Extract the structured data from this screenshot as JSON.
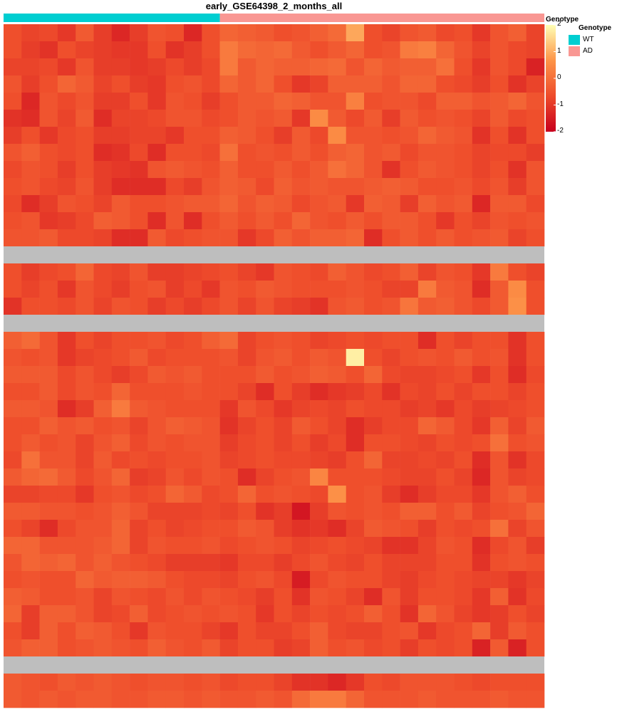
{
  "chart_data": {
    "type": "heatmap",
    "title": "early_GSE64398_2_months_all",
    "annotation": {
      "title": "Genotype",
      "groups": [
        {
          "name": "WT",
          "columns": 12,
          "color": "#00CED1"
        },
        {
          "name": "AD",
          "columns": 18,
          "color": "#F99793"
        }
      ]
    },
    "color_scale": {
      "title": "Genotype",
      "min": -2,
      "max": 2,
      "ticks": [
        2,
        1,
        0,
        -1,
        -2
      ],
      "colors": [
        "#C8001E",
        "#EE4B2B",
        "#FD9448",
        "#FFFFB4"
      ]
    },
    "legend": {
      "title": "Genotype",
      "position": "right",
      "items": [
        "WT",
        "AD"
      ]
    },
    "n_columns": 30,
    "missing_color": "#BEBEBE",
    "rows": [
      [
        -0.6,
        -0.8,
        -0.7,
        -1.0,
        -0.4,
        -0.9,
        -1.3,
        -0.9,
        -0.5,
        -0.6,
        -1.3,
        -0.6,
        -0.2,
        -0.3,
        -0.4,
        -0.6,
        -0.5,
        -0.3,
        -0.1,
        0.9,
        -0.6,
        -0.8,
        -0.5,
        -0.4,
        -0.7,
        -0.6,
        -1.0,
        -0.5,
        -0.3,
        -0.8
      ],
      [
        -0.6,
        -0.9,
        -1.1,
        -0.6,
        -0.8,
        -0.9,
        -1.0,
        -1.0,
        -0.6,
        -1.1,
        -0.9,
        -0.6,
        0.2,
        -0.1,
        -0.2,
        -0.1,
        -0.4,
        -0.6,
        -0.4,
        -0.2,
        -0.6,
        -0.5,
        0.2,
        0.3,
        -0.2,
        -0.5,
        -0.8,
        -0.5,
        -0.7,
        -0.8
      ],
      [
        -0.8,
        -0.8,
        -0.7,
        -1.0,
        -0.5,
        -0.9,
        -0.9,
        -1.0,
        -0.9,
        -0.7,
        -0.9,
        -0.7,
        0.2,
        -0.4,
        -0.2,
        -0.3,
        -0.3,
        -0.2,
        -0.1,
        -0.5,
        -0.2,
        -0.4,
        -0.3,
        -0.3,
        0.0,
        -0.6,
        -1.0,
        -0.5,
        -0.7,
        -1.4
      ],
      [
        -0.5,
        -0.9,
        -0.6,
        -0.2,
        -0.4,
        -0.8,
        -0.6,
        -0.9,
        -1.0,
        -0.6,
        -0.5,
        -0.7,
        -0.2,
        -0.4,
        -0.2,
        -0.6,
        -1.0,
        -0.8,
        -0.3,
        -0.3,
        -0.3,
        -0.5,
        -0.2,
        -0.2,
        -0.6,
        -0.7,
        -0.9,
        -0.6,
        -1.1,
        -0.8
      ],
      [
        -0.6,
        -1.3,
        -0.5,
        -0.7,
        -0.5,
        -0.9,
        -0.9,
        -0.6,
        -1.0,
        -0.5,
        -0.6,
        -0.9,
        -0.6,
        -0.4,
        -0.4,
        -0.2,
        -0.3,
        -0.5,
        -0.5,
        0.3,
        -0.6,
        -0.5,
        -0.5,
        -0.7,
        -0.3,
        -0.3,
        -0.5,
        -0.4,
        -0.2,
        -0.5
      ],
      [
        -1.1,
        -1.2,
        -0.5,
        -0.8,
        -0.4,
        -1.2,
        -0.8,
        -0.8,
        -0.7,
        -0.5,
        -0.5,
        -0.7,
        -0.6,
        -0.4,
        -0.5,
        -0.4,
        -1.0,
        0.5,
        -0.4,
        -0.7,
        -0.4,
        -0.9,
        -0.4,
        -0.6,
        -0.5,
        -0.6,
        -0.8,
        -0.4,
        -0.7,
        -0.6
      ],
      [
        -0.9,
        -0.6,
        -1.0,
        -0.7,
        -0.6,
        -0.9,
        -0.9,
        -0.8,
        -0.8,
        -1.0,
        -0.6,
        -0.6,
        -0.3,
        -0.4,
        -0.6,
        -0.9,
        -0.4,
        -0.7,
        0.5,
        -0.5,
        -0.5,
        -0.6,
        -0.5,
        -0.2,
        -0.4,
        -0.5,
        -1.1,
        -0.6,
        -1.1,
        -0.6
      ],
      [
        -0.5,
        -0.3,
        -0.6,
        -0.7,
        -0.6,
        -1.2,
        -1.1,
        -0.7,
        -1.2,
        -0.6,
        -0.6,
        -0.7,
        0.0,
        -0.6,
        -0.5,
        -0.6,
        -0.4,
        -0.6,
        -0.3,
        -0.2,
        -0.5,
        -0.4,
        -0.7,
        -0.5,
        -0.5,
        -0.6,
        -0.8,
        -0.7,
        -0.7,
        -0.9
      ],
      [
        -0.7,
        -0.5,
        -0.6,
        -0.9,
        -0.6,
        -0.9,
        -1.0,
        -1.1,
        -0.5,
        -0.4,
        -0.5,
        -0.6,
        -0.3,
        -0.6,
        -0.6,
        -0.4,
        -0.6,
        -0.4,
        0.0,
        -0.2,
        -0.5,
        -1.1,
        -0.6,
        -0.4,
        -0.5,
        -0.6,
        -0.8,
        -0.6,
        -1.1,
        -0.5
      ],
      [
        -0.6,
        -0.5,
        -0.7,
        -0.8,
        -0.5,
        -0.9,
        -1.2,
        -1.2,
        -1.2,
        -0.7,
        -0.9,
        -0.5,
        -0.3,
        -0.4,
        -0.7,
        -0.3,
        -0.5,
        -0.4,
        -0.5,
        -0.5,
        -0.4,
        -0.3,
        -0.4,
        -0.6,
        -0.6,
        -0.5,
        -0.7,
        -0.5,
        -0.9,
        -0.5
      ],
      [
        -0.7,
        -1.2,
        -0.9,
        -0.5,
        -0.6,
        -0.8,
        -0.4,
        -0.6,
        -0.6,
        -0.5,
        -0.4,
        -0.4,
        -0.2,
        -0.5,
        -0.3,
        -0.4,
        -0.7,
        -0.5,
        -0.4,
        -1.0,
        -0.3,
        -0.4,
        -0.9,
        -0.3,
        -0.5,
        -0.4,
        -1.3,
        -0.4,
        -0.4,
        -0.7
      ],
      [
        -0.6,
        -0.5,
        -1.0,
        -0.9,
        -0.7,
        -0.3,
        -0.4,
        -0.6,
        -1.2,
        -0.5,
        -1.2,
        -0.6,
        -0.4,
        -0.6,
        -0.4,
        -0.6,
        -0.2,
        -0.5,
        -0.6,
        -0.4,
        -0.6,
        -0.4,
        -0.4,
        -0.6,
        -1.0,
        -0.6,
        -0.8,
        -0.5,
        -0.6,
        -0.5
      ],
      [
        -0.5,
        -0.5,
        -0.4,
        -0.7,
        -0.7,
        -0.8,
        -1.2,
        -1.2,
        -0.4,
        -0.7,
        -0.6,
        -0.5,
        -0.5,
        -1.0,
        -0.7,
        -0.3,
        -0.5,
        -0.3,
        -0.3,
        -0.2,
        -1.2,
        -0.6,
        -0.4,
        -0.6,
        -0.4,
        -0.6,
        -0.5,
        -0.4,
        -0.8,
        -0.6
      ],
      null,
      [
        -0.6,
        -0.9,
        -0.7,
        -0.6,
        -0.2,
        -0.7,
        -0.8,
        -0.5,
        -0.9,
        -0.9,
        -0.8,
        -0.7,
        -0.6,
        -0.8,
        -1.0,
        -0.5,
        -0.6,
        -0.7,
        -0.3,
        -0.5,
        -0.7,
        -0.6,
        -0.3,
        -0.8,
        -0.5,
        -0.6,
        -1.0,
        0.2,
        -0.6,
        -0.8
      ],
      [
        -0.6,
        -0.8,
        -0.6,
        -1.0,
        -0.5,
        -0.7,
        -0.9,
        -0.6,
        -0.5,
        -0.9,
        -0.7,
        -1.0,
        -0.5,
        -0.6,
        -0.4,
        -0.5,
        -0.6,
        -0.6,
        -0.6,
        -0.5,
        -0.6,
        -0.8,
        -0.8,
        0.2,
        -0.4,
        -0.5,
        -1.2,
        -0.4,
        0.5,
        -0.6
      ],
      [
        -1.1,
        -0.6,
        -0.6,
        -0.7,
        -0.5,
        -0.8,
        -0.5,
        -0.6,
        -0.9,
        -0.7,
        -0.9,
        -0.7,
        -0.5,
        -0.8,
        -0.5,
        -0.8,
        -0.9,
        -1.1,
        -0.5,
        -0.4,
        -0.6,
        -0.5,
        0.1,
        -0.4,
        -0.3,
        -0.5,
        -0.7,
        -0.4,
        0.6,
        -0.6
      ],
      null,
      [
        -0.3,
        -0.1,
        -0.5,
        -1.0,
        -0.6,
        -0.8,
        -0.6,
        -0.6,
        -0.5,
        -0.7,
        -0.6,
        -0.3,
        -0.1,
        -0.8,
        -0.6,
        -0.5,
        -0.6,
        -0.8,
        -0.7,
        -0.6,
        -0.7,
        -0.6,
        -0.6,
        -1.2,
        -0.6,
        -0.8,
        -0.6,
        -0.6,
        -1.1,
        -0.6
      ],
      [
        -0.5,
        -0.6,
        -0.5,
        -1.0,
        -0.8,
        -0.7,
        -0.6,
        -0.4,
        -0.7,
        -0.6,
        -0.6,
        -0.6,
        -0.5,
        -0.8,
        -0.5,
        -0.4,
        -0.6,
        -0.4,
        -0.5,
        1.8,
        -0.6,
        -0.8,
        -0.6,
        -0.5,
        -0.6,
        -0.4,
        -0.6,
        -0.5,
        -1.1,
        -0.6
      ],
      [
        -0.4,
        -0.4,
        -0.4,
        -0.7,
        -0.5,
        -0.7,
        -0.9,
        -0.7,
        -0.4,
        -0.5,
        -0.4,
        -0.6,
        -0.6,
        -0.6,
        -0.4,
        -0.6,
        -0.5,
        -0.3,
        -0.4,
        -0.6,
        -0.2,
        -0.7,
        -0.8,
        -0.8,
        -0.7,
        -0.6,
        -1.0,
        -0.6,
        -1.2,
        -0.7
      ],
      [
        -0.6,
        -0.6,
        -0.4,
        -0.7,
        -0.5,
        -0.6,
        -0.2,
        -0.6,
        -0.6,
        -0.6,
        -0.5,
        -0.6,
        -0.6,
        -0.8,
        -1.2,
        -0.6,
        -0.9,
        -1.2,
        -1.0,
        -0.9,
        -0.7,
        -1.1,
        -0.7,
        -0.8,
        -0.6,
        -0.8,
        -0.6,
        -0.6,
        -0.8,
        -0.6
      ],
      [
        -0.4,
        -0.4,
        -0.5,
        -1.2,
        -0.9,
        -0.3,
        0.2,
        -0.4,
        -0.5,
        -0.6,
        -0.6,
        -0.6,
        -1.0,
        -0.5,
        -0.7,
        -1.0,
        -0.8,
        -0.7,
        -0.8,
        -0.6,
        -0.7,
        -0.7,
        -0.9,
        -0.8,
        -1.0,
        -0.7,
        -0.9,
        -0.8,
        -0.7,
        -0.6
      ],
      [
        -0.6,
        -0.6,
        -0.3,
        -0.5,
        -0.4,
        -0.6,
        -0.5,
        -0.8,
        -0.5,
        -0.3,
        -0.4,
        -0.5,
        -1.1,
        -0.8,
        -0.6,
        -0.8,
        -0.4,
        -0.6,
        -0.8,
        -1.2,
        -0.9,
        -0.7,
        -0.7,
        -0.2,
        -0.4,
        -0.7,
        -1.0,
        -0.3,
        -0.8,
        -0.4
      ],
      [
        -0.6,
        -0.4,
        -0.6,
        -0.5,
        -0.8,
        -0.5,
        -0.3,
        -0.7,
        -0.5,
        -0.6,
        -0.5,
        -0.5,
        -0.9,
        -0.7,
        -0.6,
        -0.8,
        -0.6,
        -0.9,
        -0.7,
        -1.2,
        -0.6,
        -0.6,
        -0.7,
        -0.8,
        -0.6,
        -0.7,
        -0.6,
        0.0,
        -0.6,
        -0.5
      ],
      [
        -0.7,
        0.0,
        -0.5,
        -0.5,
        -0.8,
        -0.4,
        -0.7,
        -0.6,
        -0.7,
        -0.6,
        -0.6,
        -0.5,
        -0.8,
        -0.7,
        -0.6,
        -0.7,
        -0.7,
        -0.8,
        -0.9,
        -0.6,
        -0.2,
        -0.8,
        -0.8,
        -0.7,
        -0.8,
        -0.6,
        -1.2,
        -0.5,
        -1.1,
        -0.7
      ],
      [
        -0.4,
        -0.2,
        -0.1,
        -0.4,
        -0.7,
        -0.5,
        -0.2,
        -0.9,
        -0.8,
        -0.5,
        -0.7,
        -0.5,
        -0.6,
        -1.2,
        -0.8,
        -0.6,
        -0.5,
        0.4,
        -0.6,
        -0.6,
        -0.6,
        -0.7,
        -0.8,
        -0.8,
        -0.6,
        -0.8,
        -1.3,
        -0.5,
        -0.8,
        -0.7
      ],
      [
        -0.8,
        -0.8,
        -0.7,
        -0.7,
        -1.0,
        -0.6,
        -0.5,
        -0.7,
        -0.6,
        -0.2,
        -0.4,
        -0.7,
        -0.6,
        -0.2,
        -0.6,
        -0.5,
        -0.6,
        -0.7,
        0.6,
        -0.6,
        -0.5,
        -0.9,
        -1.2,
        -0.9,
        -0.7,
        -0.7,
        -1.0,
        -0.5,
        -0.3,
        -0.6
      ],
      [
        -0.4,
        -0.4,
        -0.5,
        -0.5,
        -0.6,
        -0.5,
        -0.3,
        -0.5,
        -0.8,
        -0.8,
        -0.8,
        -0.7,
        -0.8,
        -0.6,
        -1.1,
        -0.9,
        -1.6,
        -0.9,
        -0.5,
        -0.6,
        -0.5,
        -0.6,
        -0.3,
        -0.3,
        -0.6,
        -0.4,
        -0.8,
        -0.6,
        -0.5,
        -0.2
      ],
      [
        -0.6,
        -0.8,
        -1.2,
        -0.7,
        -0.5,
        -0.5,
        -0.2,
        -0.8,
        -0.6,
        -0.8,
        -0.7,
        -0.6,
        -0.6,
        -0.4,
        -0.5,
        -0.9,
        -1.1,
        -1.0,
        -1.2,
        -0.8,
        -0.4,
        -0.5,
        -0.6,
        -0.9,
        -0.6,
        -0.7,
        -0.6,
        0.0,
        -0.8,
        -0.5
      ],
      [
        -0.2,
        -0.2,
        -0.5,
        -0.5,
        -0.5,
        -0.4,
        -0.2,
        -0.8,
        -0.5,
        -0.6,
        -0.6,
        -0.5,
        -0.7,
        -0.6,
        -0.5,
        -0.6,
        -0.8,
        -0.7,
        -0.6,
        -0.7,
        -0.8,
        -1.1,
        -1.1,
        -0.8,
        -0.5,
        -0.6,
        -1.2,
        -0.7,
        -0.5,
        -0.9
      ],
      [
        -0.5,
        -0.2,
        -0.3,
        -0.2,
        -0.5,
        -0.3,
        -0.5,
        -0.6,
        -0.7,
        -0.9,
        -0.9,
        -0.9,
        -1.0,
        -0.7,
        -0.7,
        -0.9,
        -0.7,
        -0.5,
        -0.7,
        -0.8,
        -0.6,
        -0.8,
        -0.8,
        -0.8,
        -0.6,
        -0.6,
        -1.1,
        -0.6,
        -0.5,
        -0.6
      ],
      [
        -0.6,
        -0.5,
        -0.6,
        -0.6,
        -0.2,
        -0.4,
        -0.3,
        -0.3,
        -0.4,
        -0.6,
        -0.7,
        -0.7,
        -0.8,
        -0.6,
        -0.5,
        -0.7,
        -1.5,
        -0.7,
        -0.5,
        -0.6,
        -0.6,
        -0.8,
        -0.9,
        -0.7,
        -0.6,
        -0.7,
        -0.8,
        -0.8,
        -1.0,
        -0.8
      ],
      [
        -0.3,
        -0.4,
        -0.6,
        -0.6,
        -0.5,
        -0.8,
        -0.5,
        -0.6,
        -0.7,
        -0.5,
        -0.7,
        -0.5,
        -0.6,
        -0.7,
        -0.9,
        -0.6,
        -1.1,
        -0.5,
        -0.6,
        -0.8,
        -1.2,
        -0.5,
        -0.9,
        -0.6,
        -0.6,
        -0.7,
        -1.0,
        -0.3,
        -1.1,
        -0.7
      ],
      [
        -0.2,
        -0.9,
        -0.3,
        -0.3,
        -0.5,
        -0.8,
        -0.7,
        -0.3,
        -0.7,
        -0.6,
        -0.5,
        -0.6,
        -0.5,
        -0.6,
        -1.0,
        -0.6,
        -0.8,
        -0.6,
        -0.7,
        -0.6,
        -0.3,
        -0.6,
        -1.1,
        -0.2,
        -0.5,
        -0.8,
        -1.0,
        -0.9,
        -0.6,
        -0.8
      ],
      [
        -0.6,
        -0.9,
        -0.3,
        -0.6,
        -0.3,
        -0.4,
        -0.6,
        -1.0,
        -0.5,
        -0.6,
        -0.6,
        -0.8,
        -1.0,
        -0.6,
        -0.8,
        -0.8,
        -0.6,
        -0.3,
        -0.7,
        -0.8,
        -0.8,
        -0.6,
        -0.5,
        -1.0,
        -0.7,
        -0.6,
        -0.2,
        -0.9,
        -0.4,
        -0.6
      ],
      [
        -0.5,
        -0.3,
        -0.3,
        -0.6,
        -0.5,
        -0.4,
        -0.5,
        -0.6,
        -0.3,
        -0.5,
        -0.6,
        -0.4,
        -0.8,
        -0.6,
        -0.6,
        -0.9,
        -0.8,
        -0.3,
        -0.6,
        -0.5,
        -0.7,
        -0.6,
        -0.9,
        -0.6,
        -0.7,
        -0.6,
        -1.4,
        -0.4,
        -1.4,
        -0.6
      ],
      null,
      [
        -0.4,
        -0.5,
        -0.6,
        -0.4,
        -0.5,
        -0.4,
        -0.5,
        -0.6,
        -0.5,
        -0.5,
        -0.6,
        -0.5,
        -0.7,
        -0.6,
        -0.6,
        -0.8,
        -1.1,
        -1.1,
        -1.3,
        -1.0,
        -0.6,
        -0.7,
        -0.5,
        -0.5,
        -0.5,
        -0.6,
        -0.7,
        -0.6,
        -0.6,
        -0.6
      ],
      [
        -0.4,
        -0.5,
        -0.4,
        -0.5,
        -0.4,
        -0.4,
        -0.5,
        -0.5,
        -0.4,
        -0.4,
        -0.5,
        -0.4,
        -0.5,
        -0.5,
        -0.4,
        -0.5,
        -0.1,
        0.2,
        0.2,
        -0.2,
        -0.5,
        -0.5,
        -0.5,
        -0.4,
        -0.5,
        -0.5,
        -0.5,
        -0.4,
        -0.5,
        -0.5
      ]
    ]
  }
}
